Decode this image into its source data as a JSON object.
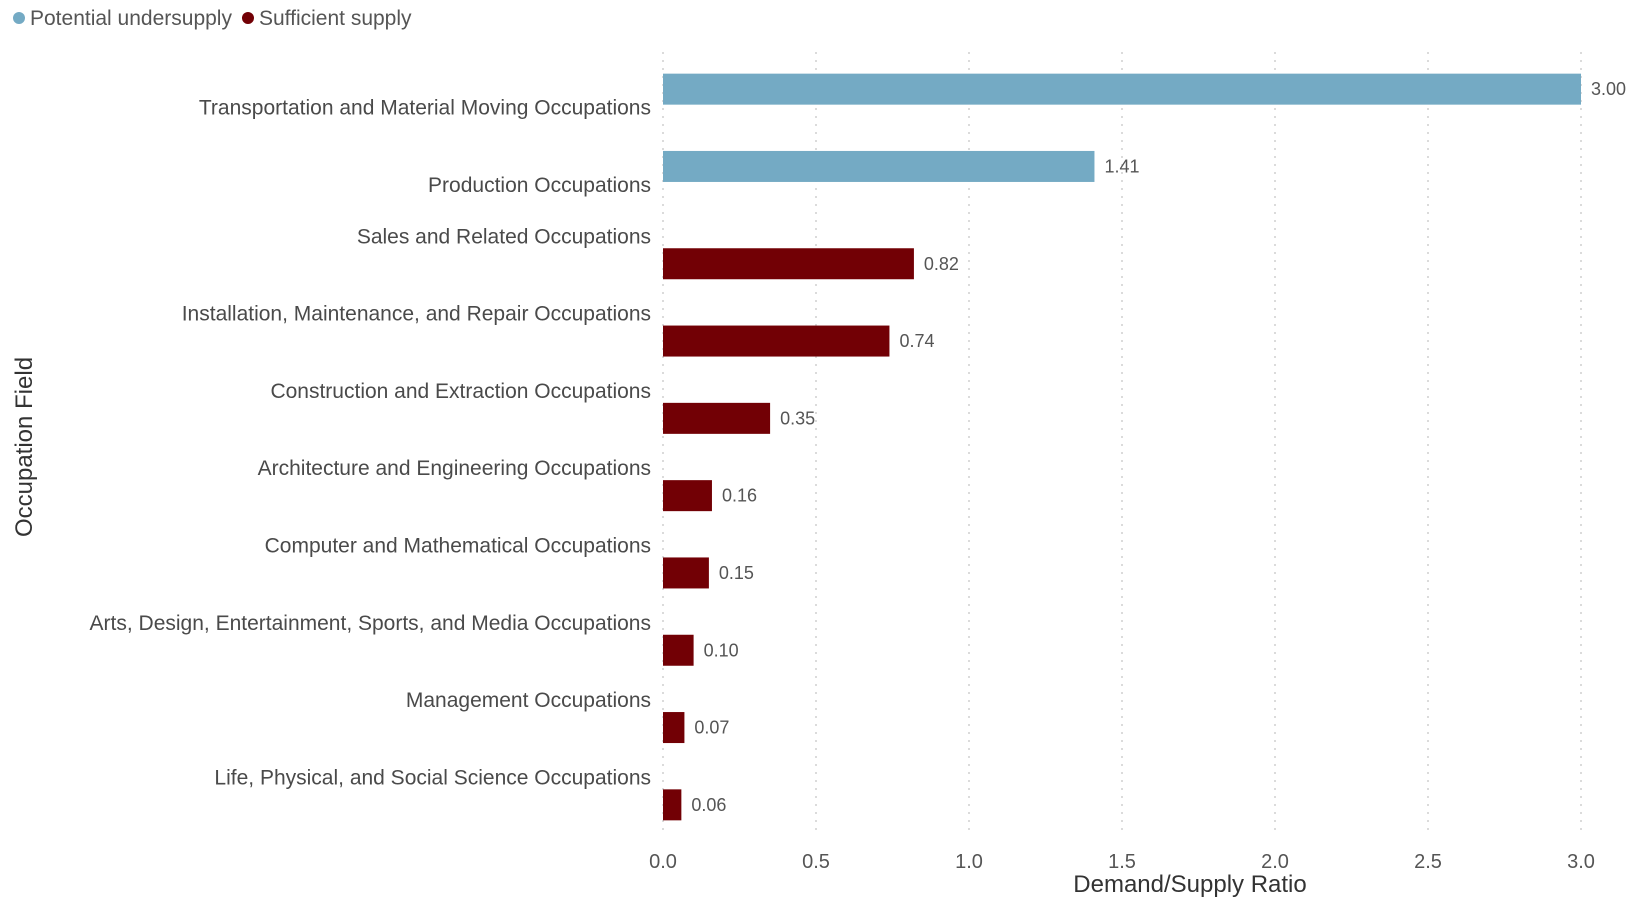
{
  "chart_data": {
    "type": "bar",
    "orientation": "horizontal",
    "xlabel": "Demand/Supply Ratio",
    "ylabel": "Occupation Field",
    "xlim": [
      0,
      3.0
    ],
    "xticks": [
      "0.0",
      "0.5",
      "1.0",
      "1.5",
      "2.0",
      "2.5",
      "3.0"
    ],
    "grid": "vertical dotted",
    "legend_position": "top-left",
    "legend": [
      {
        "name": "Potential undersupply",
        "color": "#74aac4"
      },
      {
        "name": "Sufficient supply",
        "color": "#720005"
      }
    ],
    "bars": [
      {
        "category": "Transportation and Material Moving Occupations",
        "value": 3.0,
        "label": "3.00",
        "group": "Potential undersupply"
      },
      {
        "category": "Production Occupations",
        "value": 1.41,
        "label": "1.41",
        "group": "Potential undersupply"
      },
      {
        "category": "Sales and Related Occupations",
        "value": 0.82,
        "label": "0.82",
        "group": "Sufficient supply"
      },
      {
        "category": "Installation, Maintenance, and Repair Occupations",
        "value": 0.74,
        "label": "0.74",
        "group": "Sufficient supply"
      },
      {
        "category": "Construction and Extraction Occupations",
        "value": 0.35,
        "label": "0.35",
        "group": "Sufficient supply"
      },
      {
        "category": "Architecture and Engineering Occupations",
        "value": 0.16,
        "label": "0.16",
        "group": "Sufficient supply"
      },
      {
        "category": "Computer and Mathematical Occupations",
        "value": 0.15,
        "label": "0.15",
        "group": "Sufficient supply"
      },
      {
        "category": "Arts, Design, Entertainment, Sports, and Media Occupations",
        "value": 0.1,
        "label": "0.10",
        "group": "Sufficient supply"
      },
      {
        "category": "Management Occupations",
        "value": 0.07,
        "label": "0.07",
        "group": "Sufficient supply"
      },
      {
        "category": "Life, Physical, and Social Science Occupations",
        "value": 0.06,
        "label": "0.06",
        "group": "Sufficient supply"
      }
    ]
  }
}
